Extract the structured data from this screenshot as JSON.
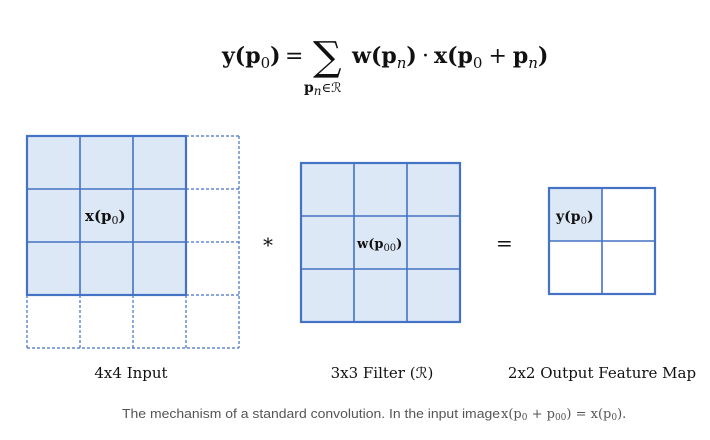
{
  "formula": {
    "lhs": "y(p",
    "lhs_sub": "0",
    "lhs_close": ")",
    "equals": "=",
    "sigma": "∑",
    "sum_index": "p",
    "sum_index_sub": "n",
    "sum_set": "∈ℛ",
    "term1": "w(p",
    "term1_sub": "n",
    "term1_close": ")",
    "dot": "·",
    "term2": "x(p",
    "term2_sub": "0",
    "plus": "+",
    "term2b": "p",
    "term2b_sub": "n",
    "term2_close": ")"
  },
  "grids": {
    "input": {
      "label": "4x4 Input",
      "cell_label": "x(p",
      "cell_label_sub": "0",
      "cell_label_close": ")",
      "fill_color": "#dde8f7",
      "line_color": "#4472c4"
    },
    "filter": {
      "label": "3x3 Filter (ℛ)",
      "cell_label": "w(p",
      "cell_label_sub": "00",
      "cell_label_close": ")",
      "fill_color": "#dde8f7",
      "line_color": "#4472c4"
    },
    "output": {
      "label": "2x2 Output Feature Map",
      "cell_label": "y(p",
      "cell_label_sub": "0",
      "cell_label_close": ")",
      "fill_color": "#dde8f7",
      "line_color": "#4472c4"
    }
  },
  "operators": {
    "convolve": "*",
    "equals": "="
  },
  "caption": {
    "text": "The mechanism of a standard convolution. In the input image ",
    "math_a": "x(p",
    "math_a_sub": "0",
    "math_plus": " + p",
    "math_plus_sub": "00",
    "math_eq": ") = x(p",
    "math_eq_sub": "0",
    "math_close": ")."
  }
}
